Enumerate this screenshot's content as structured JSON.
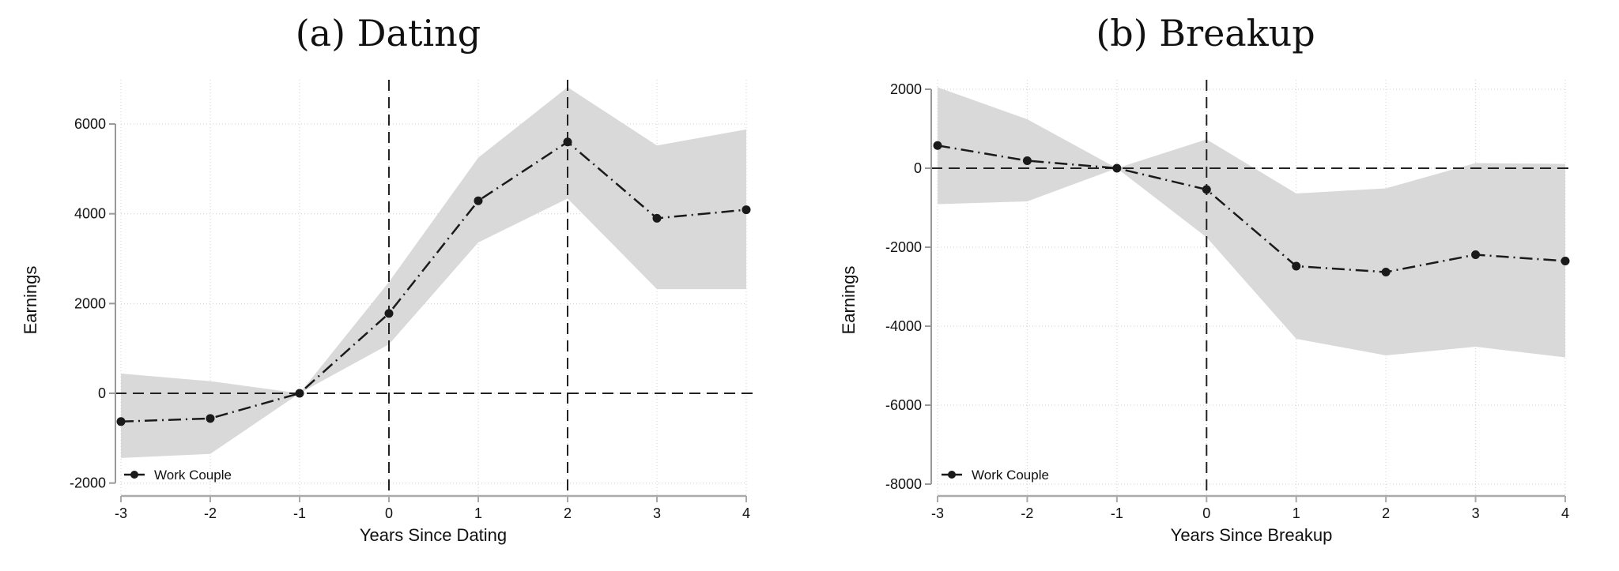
{
  "chart_data": [
    {
      "type": "line",
      "title": "(a) Dating",
      "xlabel": "Years Since Dating",
      "ylabel": "Earnings",
      "x": [
        -3,
        -2,
        -1,
        0,
        1,
        2,
        3,
        4
      ],
      "xticks": [
        "-3",
        "-2",
        "-1",
        "0",
        "1",
        "2",
        "3",
        "4"
      ],
      "yticks": [
        "-2000",
        "0",
        "2000",
        "4000",
        "6000"
      ],
      "ylim": [
        -2000,
        6900
      ],
      "xlim": [
        -3,
        4
      ],
      "grid": true,
      "reference_lines": {
        "horizontal": [
          0
        ],
        "vertical": [
          0,
          2
        ]
      },
      "series": [
        {
          "name": "Work Couple",
          "values": [
            -630,
            -560,
            0,
            1780,
            4290,
            5600,
            3900,
            4090
          ],
          "ci_upper": [
            440,
            270,
            0,
            2480,
            5250,
            6820,
            5520,
            5880
          ],
          "ci_lower": [
            -1440,
            -1350,
            0,
            1090,
            3360,
            4340,
            2320,
            2320
          ]
        }
      ],
      "legend": "bottom-left",
      "colors": {
        "line": "#1a1a1a",
        "band": "#d9d9d9"
      }
    },
    {
      "type": "line",
      "title": "(b) Breakup",
      "xlabel": "Years Since Breakup",
      "ylabel": "Earnings",
      "x": [
        -3,
        -2,
        -1,
        0,
        1,
        2,
        3,
        4
      ],
      "xticks": [
        "-3",
        "-2",
        "-1",
        "0",
        "1",
        "2",
        "3",
        "4"
      ],
      "yticks": [
        "-8000",
        "-6000",
        "-4000",
        "-2000",
        "0",
        "2000"
      ],
      "ylim": [
        -8000,
        2000
      ],
      "xlim": [
        -3,
        4
      ],
      "grid": true,
      "reference_lines": {
        "horizontal": [
          0
        ],
        "vertical": [
          0
        ]
      },
      "series": [
        {
          "name": "Work Couple",
          "values": [
            575,
            190,
            0,
            -540,
            -2480,
            -2630,
            -2190,
            -2350
          ],
          "ci_upper": [
            2050,
            1240,
            0,
            730,
            -640,
            -510,
            130,
            110
          ],
          "ci_lower": [
            -910,
            -840,
            0,
            -1750,
            -4320,
            -4740,
            -4520,
            -4790
          ]
        }
      ],
      "legend": "bottom-left",
      "colors": {
        "line": "#1a1a1a",
        "band": "#d9d9d9"
      }
    }
  ]
}
